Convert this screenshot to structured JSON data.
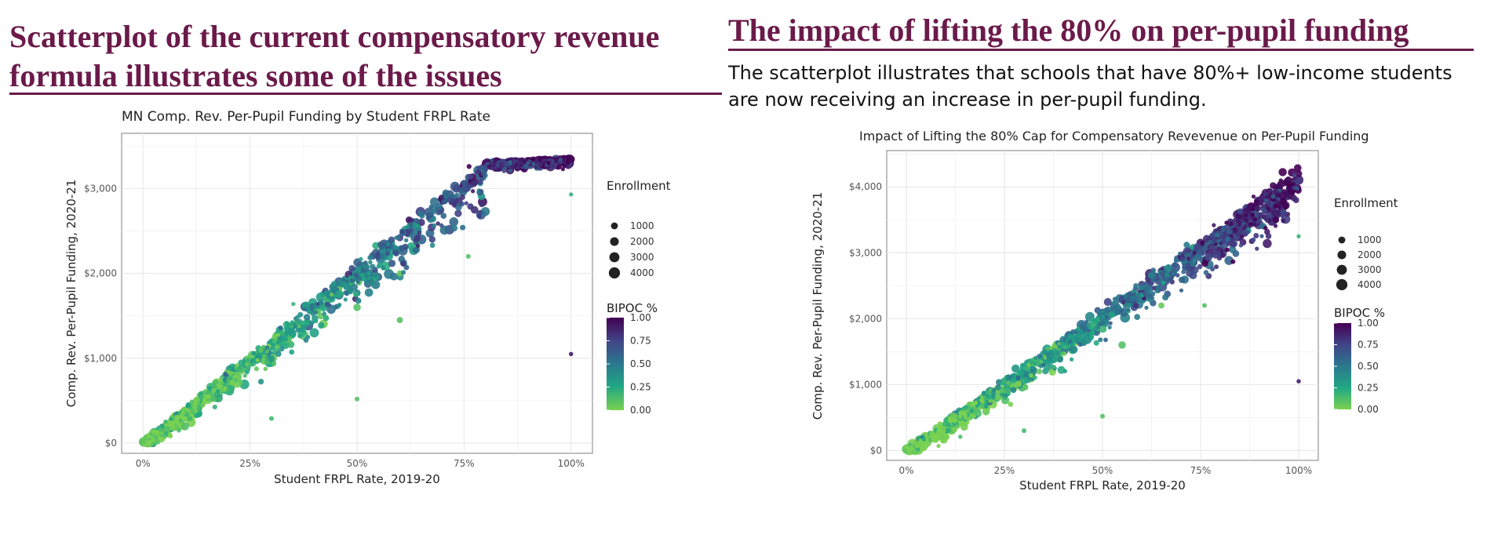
{
  "slide": {
    "left_heading_line1": "Scatterplot of the current compensatory revenue",
    "left_heading_line2": "formula illustrates some of the issues",
    "right_heading": "The impact of lifting the 80% on per-pupil funding",
    "right_description_line1": "The scatterplot illustrates that schools that have 80%+ low-income students",
    "right_description_line2": "are now receiving an increase in per-pupil funding.",
    "heading_color": "#6b1a4a"
  },
  "chart_data": [
    {
      "type": "scatter",
      "title": "MN Comp. Rev. Per-Pupil Funding by Student FRPL Rate",
      "xlabel": "Student FRPL Rate, 2019-20",
      "ylabel": "Comp. Rev. Per-Pupil Funding, 2020-21",
      "xlim": [
        -0.05,
        1.05
      ],
      "ylim": [
        -120,
        3650
      ],
      "x_ticks": [
        0,
        0.25,
        0.5,
        0.75,
        1.0
      ],
      "x_tick_labels": [
        "0%",
        "25%",
        "50%",
        "75%",
        "100%"
      ],
      "y_ticks": [
        0,
        1000,
        2000,
        3000
      ],
      "y_tick_labels": [
        "$0",
        "$1,000",
        "$2,000",
        "$3,000"
      ],
      "grid": true,
      "legend_placement": "right",
      "size_legend": {
        "title": "Enrollment",
        "values": [
          1000,
          2000,
          3000,
          4000
        ],
        "labels": [
          "1000",
          "2000",
          "3000",
          "4000"
        ]
      },
      "color_legend": {
        "title": "BIPOC %",
        "range": [
          0,
          1
        ],
        "ticks": [
          1.0,
          0.75,
          0.5,
          0.25,
          0.0
        ],
        "tick_labels": [
          "1.00",
          "0.75",
          "0.50",
          "0.25",
          "0.00"
        ],
        "colors_low_to_high": [
          "#7ad151",
          "#22a884",
          "#2a788e",
          "#414487",
          "#440154"
        ]
      },
      "trend": {
        "x": [
          0,
          0.8,
          1.0
        ],
        "y": [
          0,
          3300,
          3350
        ]
      },
      "points": [
        {
          "x": 0.01,
          "y": 20,
          "e": 300,
          "b": 0.1
        },
        {
          "x": 0.05,
          "y": 150,
          "e": 900,
          "b": 0.12
        },
        {
          "x": 0.1,
          "y": 330,
          "e": 1200,
          "b": 0.15
        },
        {
          "x": 0.15,
          "y": 540,
          "e": 1500,
          "b": 0.18
        },
        {
          "x": 0.2,
          "y": 760,
          "e": 1800,
          "b": 0.2
        },
        {
          "x": 0.25,
          "y": 960,
          "e": 2200,
          "b": 0.25
        },
        {
          "x": 0.3,
          "y": 1150,
          "e": 2000,
          "b": 0.3
        },
        {
          "x": 0.3,
          "y": 950,
          "e": 2500,
          "b": 0.22
        },
        {
          "x": 0.35,
          "y": 1380,
          "e": 1600,
          "b": 0.35
        },
        {
          "x": 0.4,
          "y": 1600,
          "e": 1500,
          "b": 0.45
        },
        {
          "x": 0.4,
          "y": 1300,
          "e": 2800,
          "b": 0.28
        },
        {
          "x": 0.45,
          "y": 1800,
          "e": 1400,
          "b": 0.55
        },
        {
          "x": 0.5,
          "y": 2000,
          "e": 1200,
          "b": 0.62
        },
        {
          "x": 0.55,
          "y": 2200,
          "e": 1100,
          "b": 0.7
        },
        {
          "x": 0.6,
          "y": 2420,
          "e": 1300,
          "b": 0.75
        },
        {
          "x": 0.65,
          "y": 2600,
          "e": 1500,
          "b": 0.82
        },
        {
          "x": 0.7,
          "y": 2850,
          "e": 1200,
          "b": 0.85
        },
        {
          "x": 0.75,
          "y": 3050,
          "e": 2000,
          "b": 0.9
        },
        {
          "x": 0.8,
          "y": 3300,
          "e": 1500,
          "b": 0.92
        },
        {
          "x": 0.85,
          "y": 3300,
          "e": 1800,
          "b": 0.95
        },
        {
          "x": 0.9,
          "y": 3320,
          "e": 2200,
          "b": 0.96
        },
        {
          "x": 0.95,
          "y": 3340,
          "e": 1500,
          "b": 0.97
        },
        {
          "x": 1.0,
          "y": 3350,
          "e": 1200,
          "b": 0.98
        },
        {
          "x": 1.0,
          "y": 1050,
          "e": 200,
          "b": 0.9
        },
        {
          "x": 1.0,
          "y": 2930,
          "e": 150,
          "b": 0.2
        },
        {
          "x": 0.5,
          "y": 520,
          "e": 300,
          "b": 0.1
        },
        {
          "x": 0.3,
          "y": 290,
          "e": 300,
          "b": 0.15
        },
        {
          "x": 0.76,
          "y": 2200,
          "e": 300,
          "b": 0.1
        },
        {
          "x": 0.5,
          "y": 1600,
          "e": 1500,
          "b": 0.1
        },
        {
          "x": 0.6,
          "y": 2000,
          "e": 800,
          "b": 0.05
        },
        {
          "x": 0.6,
          "y": 1450,
          "e": 800,
          "b": 0.1
        }
      ]
    },
    {
      "type": "scatter",
      "title": "Impact of Lifting the 80% Cap for Compensatory Revevenue on Per-Pupil Funding",
      "xlabel": "Student FRPL Rate, 2019-20",
      "ylabel": "Comp. Rev. Per-Pupil Funding, 2020-21",
      "xlim": [
        -0.05,
        1.05
      ],
      "ylim": [
        -150,
        4550
      ],
      "x_ticks": [
        0,
        0.25,
        0.5,
        0.75,
        1.0
      ],
      "x_tick_labels": [
        "0%",
        "25%",
        "50%",
        "75%",
        "100%"
      ],
      "y_ticks": [
        0,
        1000,
        2000,
        3000,
        4000
      ],
      "y_tick_labels": [
        "$0",
        "$1,000",
        "$2,000",
        "$3,000",
        "$4,000"
      ],
      "grid": true,
      "legend_placement": "right",
      "size_legend": {
        "title": "Enrollment",
        "values": [
          1000,
          2000,
          3000,
          4000
        ],
        "labels": [
          "1000",
          "2000",
          "3000",
          "4000"
        ]
      },
      "color_legend": {
        "title": "BIPOC %",
        "range": [
          0,
          1
        ],
        "ticks": [
          1.0,
          0.75,
          0.5,
          0.25,
          0.0
        ],
        "tick_labels": [
          "1.00",
          "0.75",
          "0.50",
          "0.25",
          "0.00"
        ],
        "colors_low_to_high": [
          "#7ad151",
          "#22a884",
          "#2a788e",
          "#414487",
          "#440154"
        ]
      },
      "trend": {
        "x": [
          0,
          1.0
        ],
        "y": [
          0,
          4200
        ]
      },
      "points": [
        {
          "x": 0.01,
          "y": 30,
          "e": 300,
          "b": 0.1
        },
        {
          "x": 0.05,
          "y": 180,
          "e": 900,
          "b": 0.12
        },
        {
          "x": 0.1,
          "y": 390,
          "e": 1200,
          "b": 0.15
        },
        {
          "x": 0.15,
          "y": 620,
          "e": 1500,
          "b": 0.18
        },
        {
          "x": 0.2,
          "y": 840,
          "e": 1800,
          "b": 0.2
        },
        {
          "x": 0.25,
          "y": 1040,
          "e": 2200,
          "b": 0.25
        },
        {
          "x": 0.3,
          "y": 1250,
          "e": 2000,
          "b": 0.3
        },
        {
          "x": 0.35,
          "y": 1460,
          "e": 1600,
          "b": 0.35
        },
        {
          "x": 0.4,
          "y": 1680,
          "e": 1500,
          "b": 0.45
        },
        {
          "x": 0.45,
          "y": 1880,
          "e": 1400,
          "b": 0.55
        },
        {
          "x": 0.5,
          "y": 2100,
          "e": 1200,
          "b": 0.62
        },
        {
          "x": 0.55,
          "y": 2300,
          "e": 1100,
          "b": 0.7
        },
        {
          "x": 0.6,
          "y": 2520,
          "e": 1300,
          "b": 0.75
        },
        {
          "x": 0.65,
          "y": 2720,
          "e": 1500,
          "b": 0.82
        },
        {
          "x": 0.7,
          "y": 2940,
          "e": 1200,
          "b": 0.85
        },
        {
          "x": 0.75,
          "y": 3150,
          "e": 2000,
          "b": 0.9
        },
        {
          "x": 0.8,
          "y": 3350,
          "e": 1500,
          "b": 0.92
        },
        {
          "x": 0.85,
          "y": 3570,
          "e": 1800,
          "b": 0.95
        },
        {
          "x": 0.9,
          "y": 3780,
          "e": 2200,
          "b": 0.96
        },
        {
          "x": 0.95,
          "y": 3990,
          "e": 1500,
          "b": 0.97
        },
        {
          "x": 1.0,
          "y": 4200,
          "e": 1200,
          "b": 0.98
        },
        {
          "x": 1.0,
          "y": 1050,
          "e": 200,
          "b": 0.9
        },
        {
          "x": 1.0,
          "y": 3250,
          "e": 150,
          "b": 0.2
        },
        {
          "x": 0.5,
          "y": 520,
          "e": 300,
          "b": 0.1
        },
        {
          "x": 0.3,
          "y": 300,
          "e": 300,
          "b": 0.15
        },
        {
          "x": 0.76,
          "y": 2200,
          "e": 300,
          "b": 0.1
        },
        {
          "x": 0.55,
          "y": 1600,
          "e": 1500,
          "b": 0.1
        },
        {
          "x": 0.65,
          "y": 2200,
          "e": 800,
          "b": 0.05
        }
      ]
    }
  ]
}
